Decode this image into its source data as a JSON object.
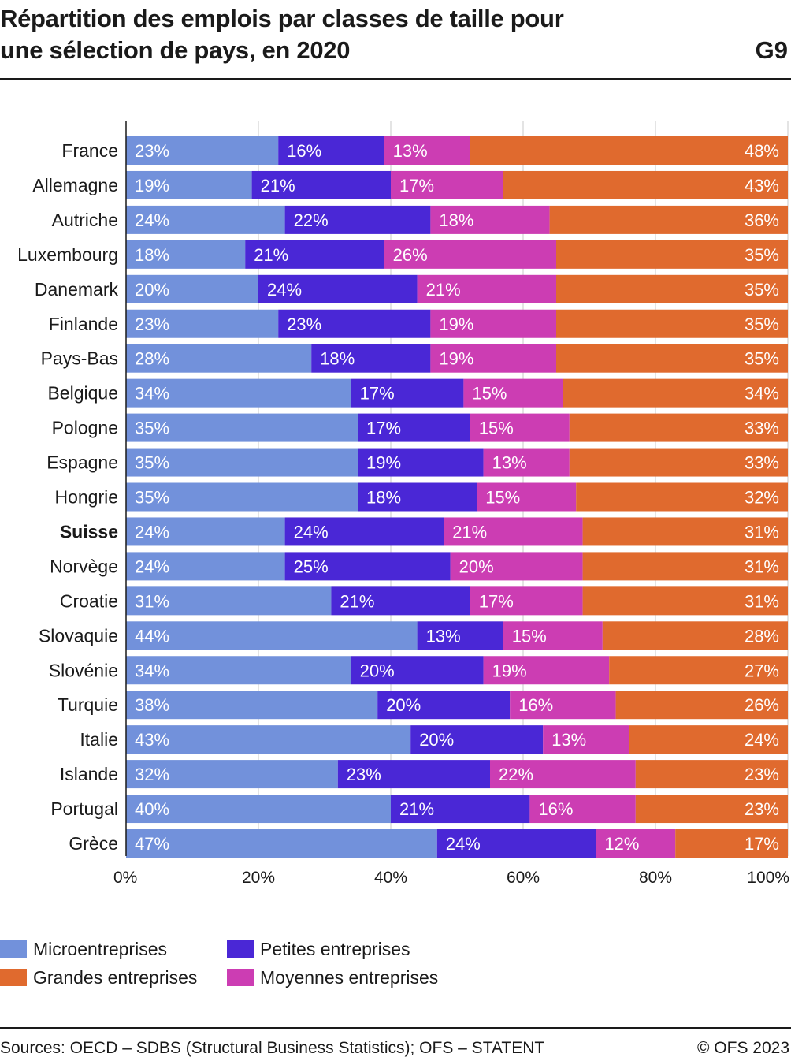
{
  "header": {
    "title_line1": "Répartition des emplois par classes de taille pour",
    "title_line2": "une sélection de pays, en 2020",
    "chart_id": "G9"
  },
  "chart_data": {
    "type": "bar",
    "orientation": "horizontal",
    "stacked": true,
    "title": "Répartition des emplois par classes de taille pour une sélection de pays, en 2020",
    "categories": [
      "France",
      "Allemagne",
      "Autriche",
      "Luxembourg",
      "Danemark",
      "Finlande",
      "Pays-Bas",
      "Belgique",
      "Pologne",
      "Espagne",
      "Hongrie",
      "Suisse",
      "Norvège",
      "Croatie",
      "Slovaquie",
      "Slovénie",
      "Turquie",
      "Italie",
      "Islande",
      "Portugal",
      "Grèce"
    ],
    "highlighted_category": "Suisse",
    "series": [
      {
        "name": "Microentreprises",
        "color": "#7291db",
        "values": [
          23,
          19,
          24,
          18,
          20,
          23,
          28,
          34,
          35,
          35,
          35,
          24,
          24,
          31,
          44,
          34,
          38,
          43,
          32,
          40,
          47
        ]
      },
      {
        "name": "Petites entreprises",
        "color": "#4a27d6",
        "values": [
          16,
          21,
          22,
          21,
          24,
          23,
          18,
          17,
          17,
          19,
          18,
          24,
          25,
          21,
          13,
          20,
          20,
          20,
          23,
          21,
          24
        ]
      },
      {
        "name": "Moyennes entreprises",
        "color": "#cc3db3",
        "values": [
          13,
          17,
          18,
          26,
          21,
          19,
          19,
          15,
          15,
          13,
          15,
          21,
          20,
          17,
          15,
          19,
          16,
          13,
          22,
          16,
          12
        ]
      },
      {
        "name": "Grandes entreprises",
        "color": "#e06a2e",
        "values": [
          48,
          43,
          36,
          35,
          35,
          35,
          35,
          34,
          33,
          33,
          32,
          31,
          31,
          31,
          28,
          27,
          26,
          24,
          23,
          23,
          17
        ]
      }
    ],
    "xlim": [
      0,
      100
    ],
    "x_ticks": [
      "0%",
      "20%",
      "40%",
      "60%",
      "80%",
      "100%"
    ],
    "value_suffix": "%",
    "grid": true
  },
  "legend": {
    "row1": [
      {
        "label": "Microentreprises",
        "color": "#7291db"
      },
      {
        "label": "Petites entreprises",
        "color": "#4a27d6"
      }
    ],
    "row2": [
      {
        "label": "Grandes entreprises",
        "color": "#e06a2e"
      },
      {
        "label": "Moyennes entreprises",
        "color": "#cc3db3"
      }
    ]
  },
  "footer": {
    "source": "Sources: OECD – SDBS (Structural Business Statistics); OFS – STATENT",
    "copyright": "© OFS 2023"
  }
}
